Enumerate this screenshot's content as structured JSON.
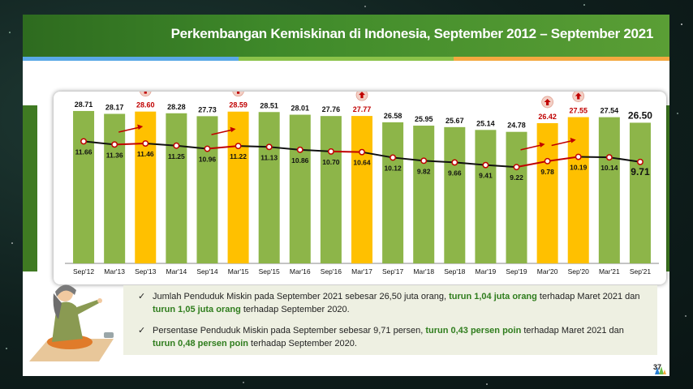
{
  "title": "Perkembangan Kemiskinan di Indonesia, September 2012 – September 2021",
  "page_number": "37",
  "colors": {
    "bar_green": "#8db549",
    "bar_yellow": "#ffc000",
    "line_black": "#111111",
    "line_red": "#c00000",
    "highlight_green": "#2f7d1d",
    "stripe_1": "#5aa9e6",
    "stripe_2": "#8bc34a",
    "stripe_3": "#f4a940"
  },
  "chart_data": {
    "type": "bar",
    "categories": [
      "Sep'12",
      "Mar'13",
      "Sep'13",
      "Mar'14",
      "Sep'14",
      "Mar'15",
      "Sep'15",
      "Mar'16",
      "Sep'16",
      "Mar'17",
      "Sep'17",
      "Mar'18",
      "Sep'18",
      "Mar'19",
      "Sep'19",
      "Mar'20",
      "Sep'20",
      "Mar'21",
      "Sep'21"
    ],
    "series": [
      {
        "type": "bar",
        "values": [
          28.71,
          28.17,
          28.6,
          28.28,
          27.73,
          28.59,
          28.51,
          28.01,
          27.76,
          27.77,
          26.58,
          25.95,
          25.67,
          25.14,
          24.78,
          26.42,
          27.55,
          27.54,
          26.5
        ],
        "labels": [
          "28.71",
          "28.17",
          "28.60",
          "28.28",
          "27.73",
          "28.59",
          "28.51",
          "28.01",
          "27.76",
          "27.77",
          "26.58",
          "25.95",
          "25.67",
          "25.14",
          "24.78",
          "26.42",
          "27.55",
          "27.54",
          "26.50"
        ]
      },
      {
        "type": "line",
        "values": [
          11.66,
          11.36,
          11.46,
          11.25,
          10.96,
          11.22,
          11.13,
          10.86,
          10.7,
          10.64,
          10.12,
          9.82,
          9.66,
          9.41,
          9.22,
          9.78,
          10.19,
          10.14,
          9.71
        ],
        "labels": [
          "11.66",
          "11.36",
          "11.46",
          "11.25",
          "10.96",
          "11.22",
          "11.13",
          "10.86",
          "10.70",
          "10.64",
          "10.12",
          "9.82",
          "9.66",
          "9.41",
          "9.22",
          "9.78",
          "10.19",
          "10.14",
          "9.71"
        ]
      }
    ],
    "highlighted_increase": [
      "Sep'13",
      "Mar'15",
      "Mar'17",
      "Mar'20",
      "Sep'20"
    ],
    "trend_arrows_after": [
      "Mar'13",
      "Sep'14",
      "Sep'19",
      "Mar'20"
    ],
    "grid": false,
    "legend": "none"
  },
  "bullets": [
    {
      "parts": [
        {
          "t": "Jumlah Penduduk Miskin pada September 2021 sebesar 26,50 juta orang, ",
          "h": false
        },
        {
          "t": "turun 1,04 juta orang",
          "h": true
        },
        {
          "t": " terhadap Maret 2021 dan ",
          "h": false
        },
        {
          "t": "turun 1,05 juta orang",
          "h": true
        },
        {
          "t": " terhadap September 2020.",
          "h": false
        }
      ]
    },
    {
      "parts": [
        {
          "t": "Persentase Penduduk Miskin pada September sebesar 9,71 persen, ",
          "h": false
        },
        {
          "t": "turun 0,43 persen poin",
          "h": true
        },
        {
          "t": " terhadap Maret 2021 dan ",
          "h": false
        },
        {
          "t": "turun 0,48 persen poin",
          "h": true
        },
        {
          "t": " terhadap September 2020.",
          "h": false
        }
      ]
    }
  ],
  "icons": {
    "checkmark": "check-icon",
    "increase": "up-arrow-icon",
    "trend": "trend-arrow-icon",
    "illustration": "woman-illustration",
    "logo": "bps-logo"
  }
}
